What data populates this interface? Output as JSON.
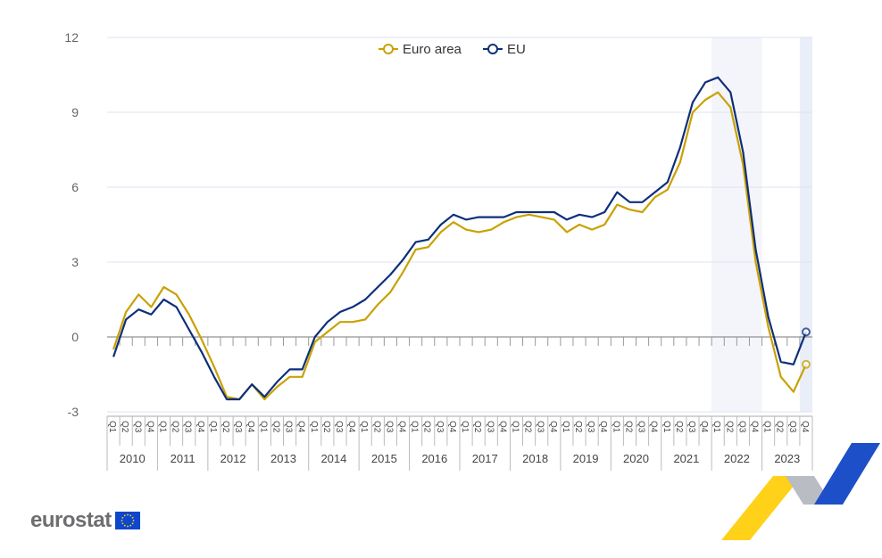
{
  "chart_data": {
    "type": "line",
    "title": "",
    "xlabel": "",
    "ylabel": "",
    "ylim": [
      -3,
      12
    ],
    "yticks": [
      -3,
      0,
      3,
      6,
      9,
      12
    ],
    "grid": true,
    "legend_position": "top-center",
    "years": [
      "2010",
      "2011",
      "2012",
      "2013",
      "2014",
      "2015",
      "2016",
      "2017",
      "2018",
      "2019",
      "2020",
      "2021",
      "2022",
      "2023"
    ],
    "quarters": [
      "Q1",
      "Q2",
      "Q3",
      "Q4"
    ],
    "highlighted_periods": [
      "2022",
      "2023 Q4"
    ],
    "series": [
      {
        "name": "Euro area",
        "color": "#c9a100",
        "values": [
          -0.5,
          1.0,
          1.7,
          1.2,
          2.0,
          1.7,
          0.9,
          -0.1,
          -1.2,
          -2.4,
          -2.5,
          -1.9,
          -2.5,
          -2.0,
          -1.6,
          -1.6,
          -0.2,
          0.2,
          0.6,
          0.6,
          0.7,
          1.3,
          1.8,
          2.6,
          3.5,
          3.6,
          4.2,
          4.6,
          4.3,
          4.2,
          4.3,
          4.6,
          4.8,
          4.9,
          4.8,
          4.7,
          4.2,
          4.5,
          4.3,
          4.5,
          5.3,
          5.1,
          5.0,
          5.6,
          5.9,
          7.0,
          9.0,
          9.5,
          9.8,
          9.2,
          6.9,
          3.0,
          0.4,
          -1.6,
          -2.2,
          -1.1
        ]
      },
      {
        "name": "EU",
        "color": "#0e2f7a",
        "values": [
          -0.8,
          0.7,
          1.1,
          0.9,
          1.5,
          1.2,
          0.3,
          -0.6,
          -1.6,
          -2.5,
          -2.5,
          -1.9,
          -2.4,
          -1.8,
          -1.3,
          -1.3,
          0.0,
          0.6,
          1.0,
          1.2,
          1.5,
          2.0,
          2.5,
          3.1,
          3.8,
          3.9,
          4.5,
          4.9,
          4.7,
          4.8,
          4.8,
          4.8,
          5.0,
          5.0,
          5.0,
          5.0,
          4.7,
          4.9,
          4.8,
          5.0,
          5.8,
          5.4,
          5.4,
          5.8,
          6.2,
          7.6,
          9.4,
          10.2,
          10.4,
          9.8,
          7.4,
          3.5,
          0.8,
          -1.0,
          -1.1,
          0.2
        ]
      }
    ]
  },
  "branding": {
    "logo_text": "eurostat"
  }
}
